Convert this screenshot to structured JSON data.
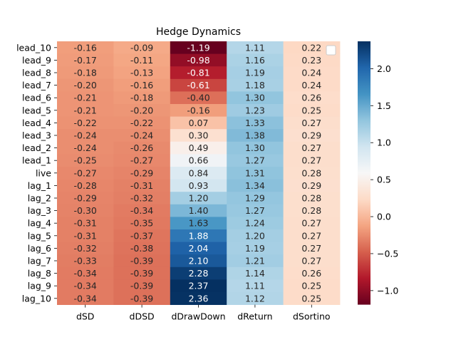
{
  "chart_data": {
    "type": "heatmap",
    "title": "Hedge Dynamics",
    "xlabel": "",
    "ylabel": "",
    "columns": [
      "dSD",
      "dDSD",
      "dDrawDown",
      "dReturn",
      "dSortino"
    ],
    "rows": [
      "lead_10",
      "lead_9",
      "lead_8",
      "lead_7",
      "lead_6",
      "lead_5",
      "lead_4",
      "lead_3",
      "lead_2",
      "lead_1",
      "live",
      "lag_1",
      "lag_2",
      "lag_3",
      "lag_4",
      "lag_5",
      "lag_6",
      "lag_7",
      "lag_8",
      "lag_9",
      "lag_10"
    ],
    "values": [
      [
        -0.16,
        -0.09,
        -1.19,
        1.11,
        0.22
      ],
      [
        -0.17,
        -0.11,
        -0.98,
        1.16,
        0.23
      ],
      [
        -0.18,
        -0.13,
        -0.81,
        1.19,
        0.24
      ],
      [
        -0.2,
        -0.16,
        -0.61,
        1.18,
        0.24
      ],
      [
        -0.21,
        -0.18,
        -0.4,
        1.3,
        0.26
      ],
      [
        -0.21,
        -0.2,
        -0.16,
        1.23,
        0.25
      ],
      [
        -0.22,
        -0.22,
        0.07,
        1.33,
        0.27
      ],
      [
        -0.24,
        -0.24,
        0.3,
        1.38,
        0.29
      ],
      [
        -0.24,
        -0.26,
        0.49,
        1.3,
        0.27
      ],
      [
        -0.25,
        -0.27,
        0.66,
        1.27,
        0.27
      ],
      [
        -0.27,
        -0.29,
        0.84,
        1.31,
        0.28
      ],
      [
        -0.28,
        -0.31,
        0.93,
        1.34,
        0.29
      ],
      [
        -0.29,
        -0.32,
        1.2,
        1.29,
        0.28
      ],
      [
        -0.3,
        -0.34,
        1.4,
        1.27,
        0.28
      ],
      [
        -0.31,
        -0.35,
        1.63,
        1.24,
        0.27
      ],
      [
        -0.31,
        -0.37,
        1.88,
        1.2,
        0.27
      ],
      [
        -0.32,
        -0.38,
        2.04,
        1.19,
        0.27
      ],
      [
        -0.33,
        -0.39,
        2.1,
        1.21,
        0.27
      ],
      [
        -0.34,
        -0.39,
        2.28,
        1.14,
        0.26
      ],
      [
        -0.34,
        -0.39,
        2.37,
        1.11,
        0.25
      ],
      [
        -0.34,
        -0.39,
        2.36,
        1.12,
        0.25
      ]
    ],
    "value_format": "0.00",
    "colormap": "RdBu",
    "vmin": -1.19,
    "vmax": 2.37,
    "center": 0.59,
    "colorbar_ticks": [
      -1.0,
      -0.5,
      0.0,
      0.5,
      1.0,
      1.5,
      2.0
    ],
    "colorbar_labels": [
      "−1.0",
      "−0.5",
      "0.0",
      "0.5",
      "1.0",
      "1.5",
      "2.0"
    ],
    "legend": {
      "placement": "top-right",
      "entries": []
    }
  }
}
